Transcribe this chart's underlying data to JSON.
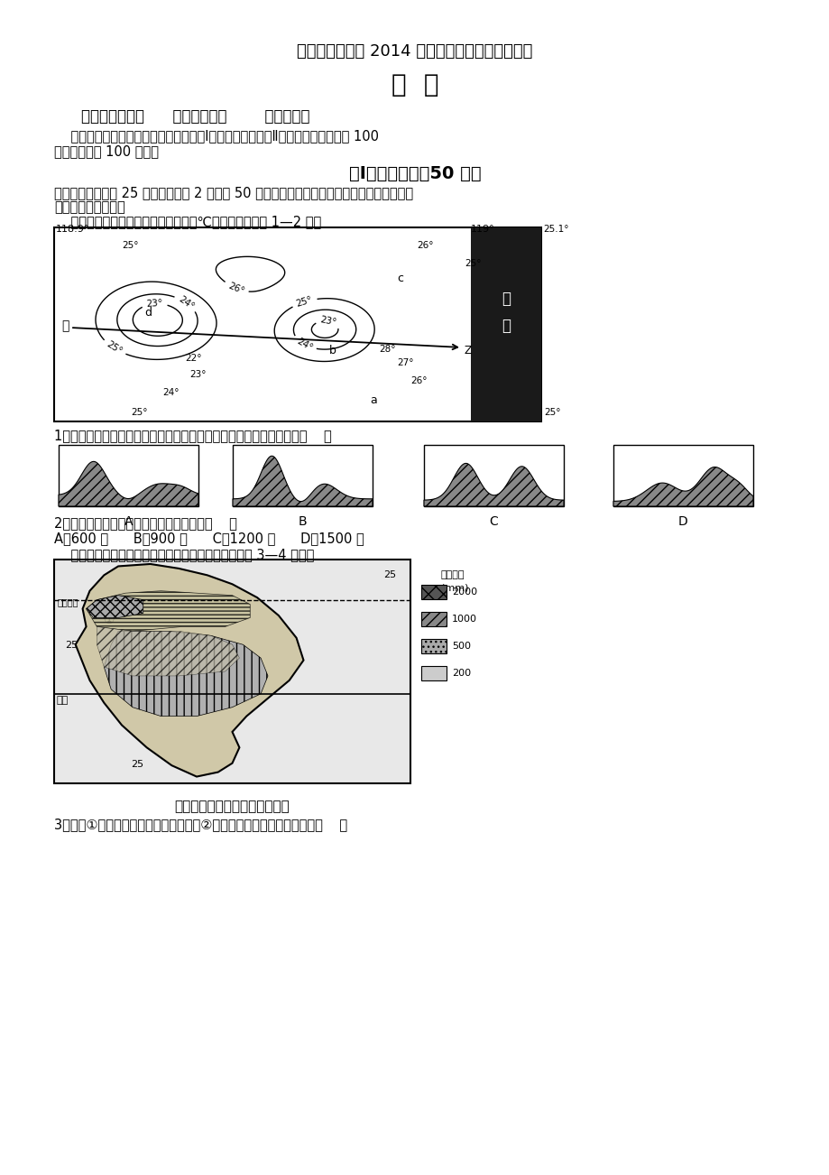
{
  "title1": "成都龙泉中学高 2014 级进入高三适应性考试试题",
  "title2": "地  理",
  "authors": "出题人：许绍芬      做题人：黄伟        审题：杜强",
  "intro_line1": "    本试卷分选择题和非选择题两部分。第Ⅰ卷（选择题）和第Ⅱ卷（非选择题）满分 100",
  "intro_line2": "分，考试时间 100 分钟。",
  "section_title": "第Ⅰ卷（选择题，50 分）",
  "q_intro1": "一、选择题。（共 25 小题，每小题 2 分，共 50 分。在每小题所列的四个选项中，只有一个选",
  "q_intro2": "项符合题目要求。）",
  "map1_intro": "    下图为某区域七月份等温线（单位：℃）图，读图回答 1—2 题。",
  "q1": "1．从地形上来看，以下四幅剖面图与上图甲乙线段经过地最相符的是（    ）",
  "q2": "2．图中甲乙线段上的最大相对高度可能是（    ）",
  "q2_options": "A．600 米      B．900 米      C．1200 米      D．1500 米",
  "map2_intro": "    下图为某区域年降水量和年平均等温线分布图。回答 3—4 问题。",
  "map2_caption": "年降水量和年平均等温线分布图",
  "q3": "3．影响①地年平均等温线弯曲以及影响②地年降水量的主要因素分别是（    ）",
  "bg_color": "#ffffff"
}
